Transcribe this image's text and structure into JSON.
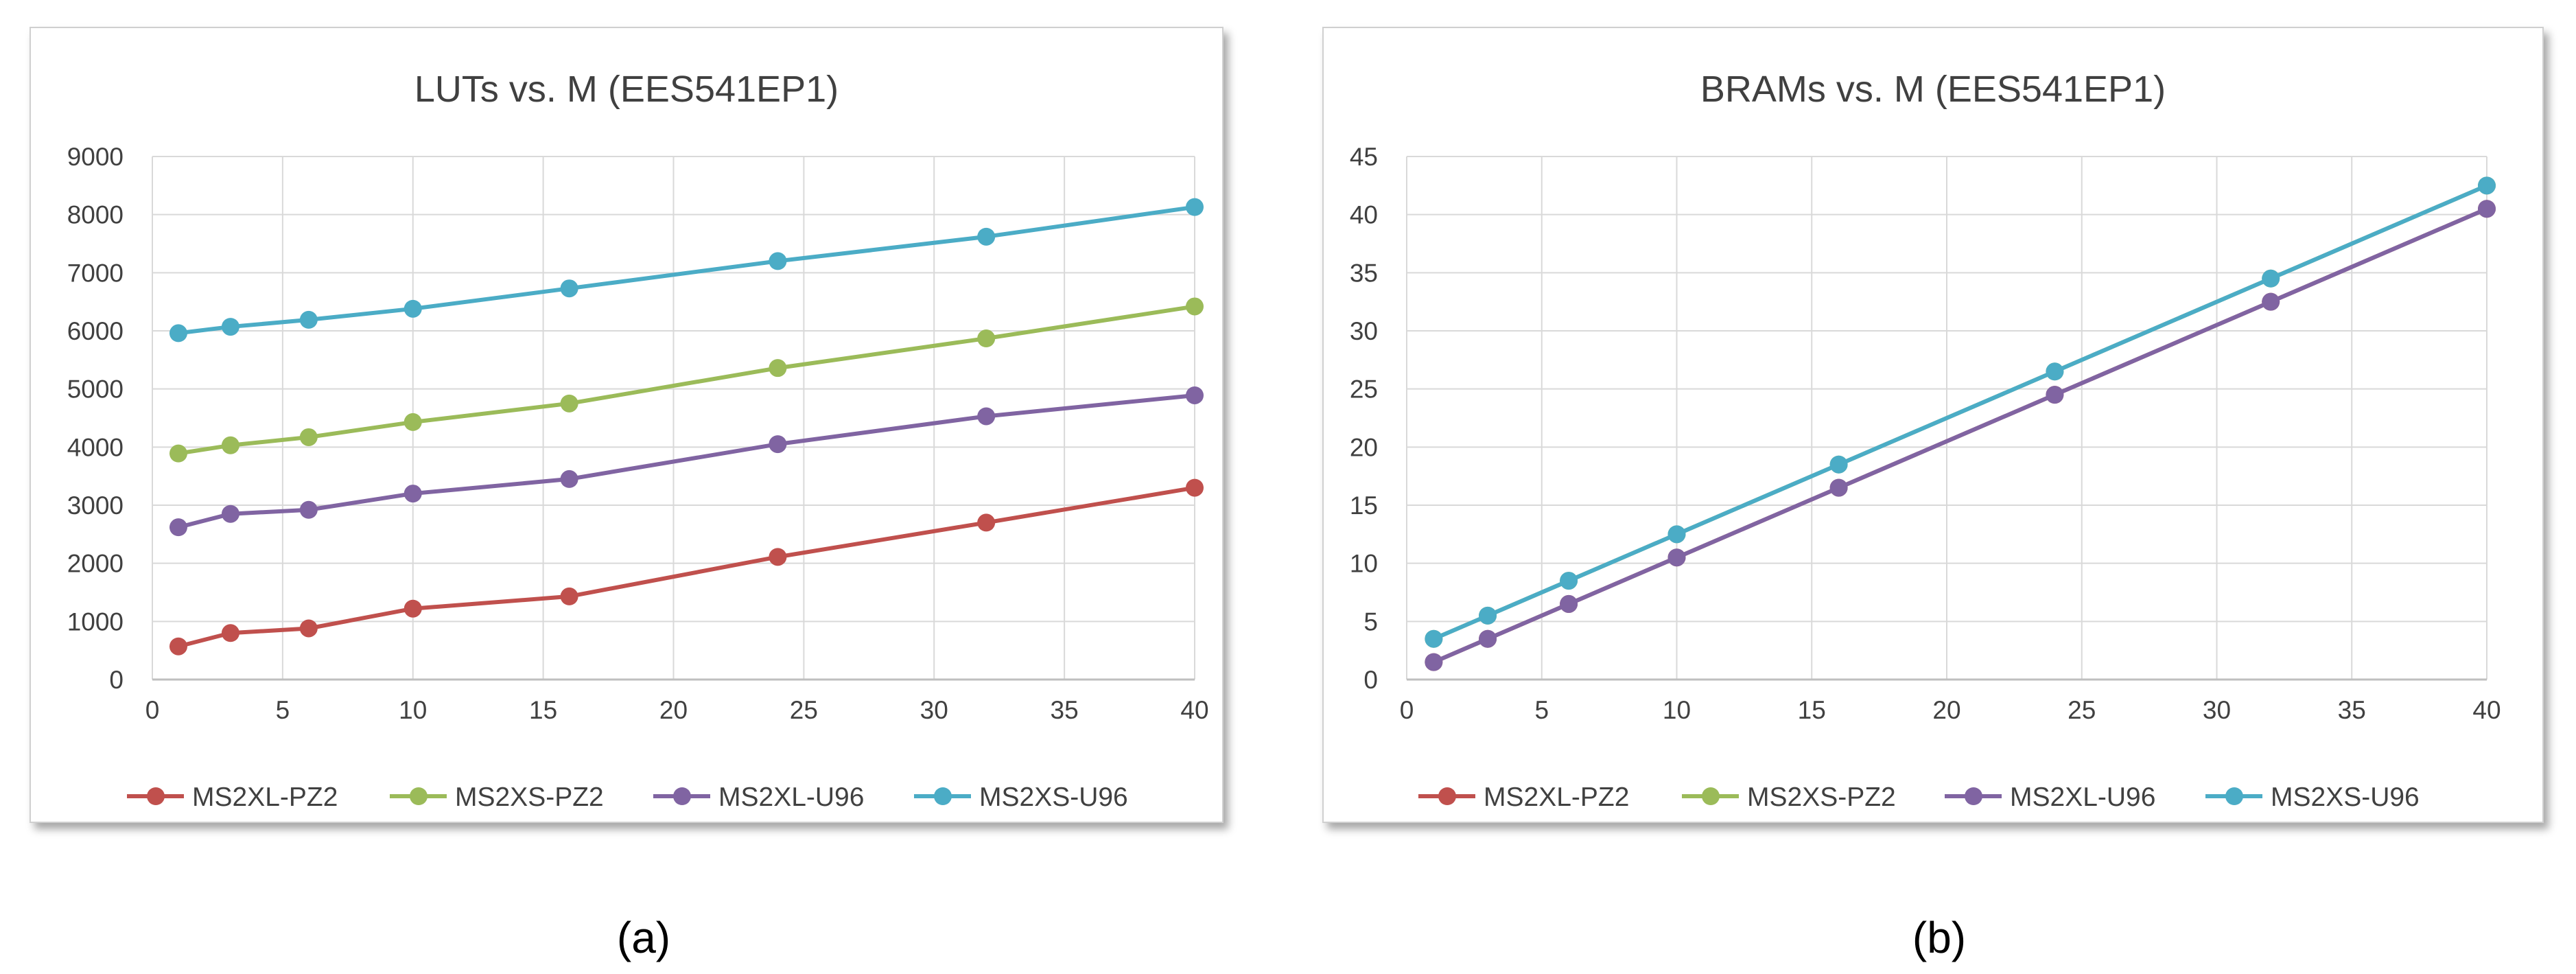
{
  "colors": {
    "ms2xl_pz2": "#c0504d",
    "ms2xs_pz2": "#9bbb59",
    "ms2xl_u96": "#8064a2",
    "ms2xs_u96": "#4bacc6",
    "grid": "#d9d9d9",
    "axis": "#bfbfbf"
  },
  "chart_data": [
    {
      "type": "line",
      "title": "LUTs vs. M (EES541EP1)",
      "caption": "(a)",
      "xlabel": "",
      "ylabel": "",
      "x": [
        1,
        3,
        6,
        10,
        16,
        24,
        32,
        40
      ],
      "xlim": [
        0,
        40
      ],
      "xticks": [
        "0",
        "5",
        "10",
        "15",
        "20",
        "25",
        "30",
        "35",
        "40"
      ],
      "ylim": [
        0,
        9000
      ],
      "yticks": [
        "0",
        "1000",
        "2000",
        "3000",
        "4000",
        "5000",
        "6000",
        "7000",
        "8000",
        "9000"
      ],
      "grid": true,
      "legend_position": "bottom",
      "series": [
        {
          "name": "MS2XL-PZ2",
          "color_key": "ms2xl_pz2",
          "values": [
            570,
            800,
            880,
            1220,
            1430,
            2110,
            2700,
            3300
          ]
        },
        {
          "name": "MS2XS-PZ2",
          "color_key": "ms2xs_pz2",
          "values": [
            3890,
            4030,
            4170,
            4430,
            4750,
            5360,
            5870,
            6420
          ]
        },
        {
          "name": "MS2XL-U96",
          "color_key": "ms2xl_u96",
          "values": [
            2620,
            2850,
            2920,
            3200,
            3450,
            4050,
            4530,
            4890
          ]
        },
        {
          "name": "MS2XS-U96",
          "color_key": "ms2xs_u96",
          "values": [
            5960,
            6070,
            6190,
            6380,
            6730,
            7200,
            7620,
            8130
          ]
        }
      ]
    },
    {
      "type": "line",
      "title": "BRAMs vs. M (EES541EP1)",
      "caption": "(b)",
      "xlabel": "",
      "ylabel": "",
      "x": [
        1,
        3,
        6,
        10,
        16,
        24,
        32,
        40
      ],
      "xlim": [
        0,
        40
      ],
      "xticks": [
        "0",
        "5",
        "10",
        "15",
        "20",
        "25",
        "30",
        "35",
        "40"
      ],
      "ylim": [
        0,
        45
      ],
      "yticks": [
        "0",
        "5",
        "10",
        "15",
        "20",
        "25",
        "30",
        "35",
        "40",
        "45"
      ],
      "grid": true,
      "legend_position": "bottom",
      "series": [
        {
          "name": "MS2XL-PZ2",
          "color_key": "ms2xl_pz2",
          "values": [
            1.5,
            3.5,
            6.5,
            10.5,
            16.5,
            24.5,
            32.5,
            40.5
          ]
        },
        {
          "name": "MS2XS-PZ2",
          "color_key": "ms2xs_pz2",
          "values": [
            3.5,
            5.5,
            8.5,
            12.5,
            18.5,
            26.5,
            34.5,
            42.5
          ]
        },
        {
          "name": "MS2XL-U96",
          "color_key": "ms2xl_u96",
          "values": [
            1.5,
            3.5,
            6.5,
            10.5,
            16.5,
            24.5,
            32.5,
            40.5
          ]
        },
        {
          "name": "MS2XS-U96",
          "color_key": "ms2xs_u96",
          "values": [
            3.5,
            5.5,
            8.5,
            12.5,
            18.5,
            26.5,
            34.5,
            42.5
          ]
        }
      ]
    }
  ]
}
